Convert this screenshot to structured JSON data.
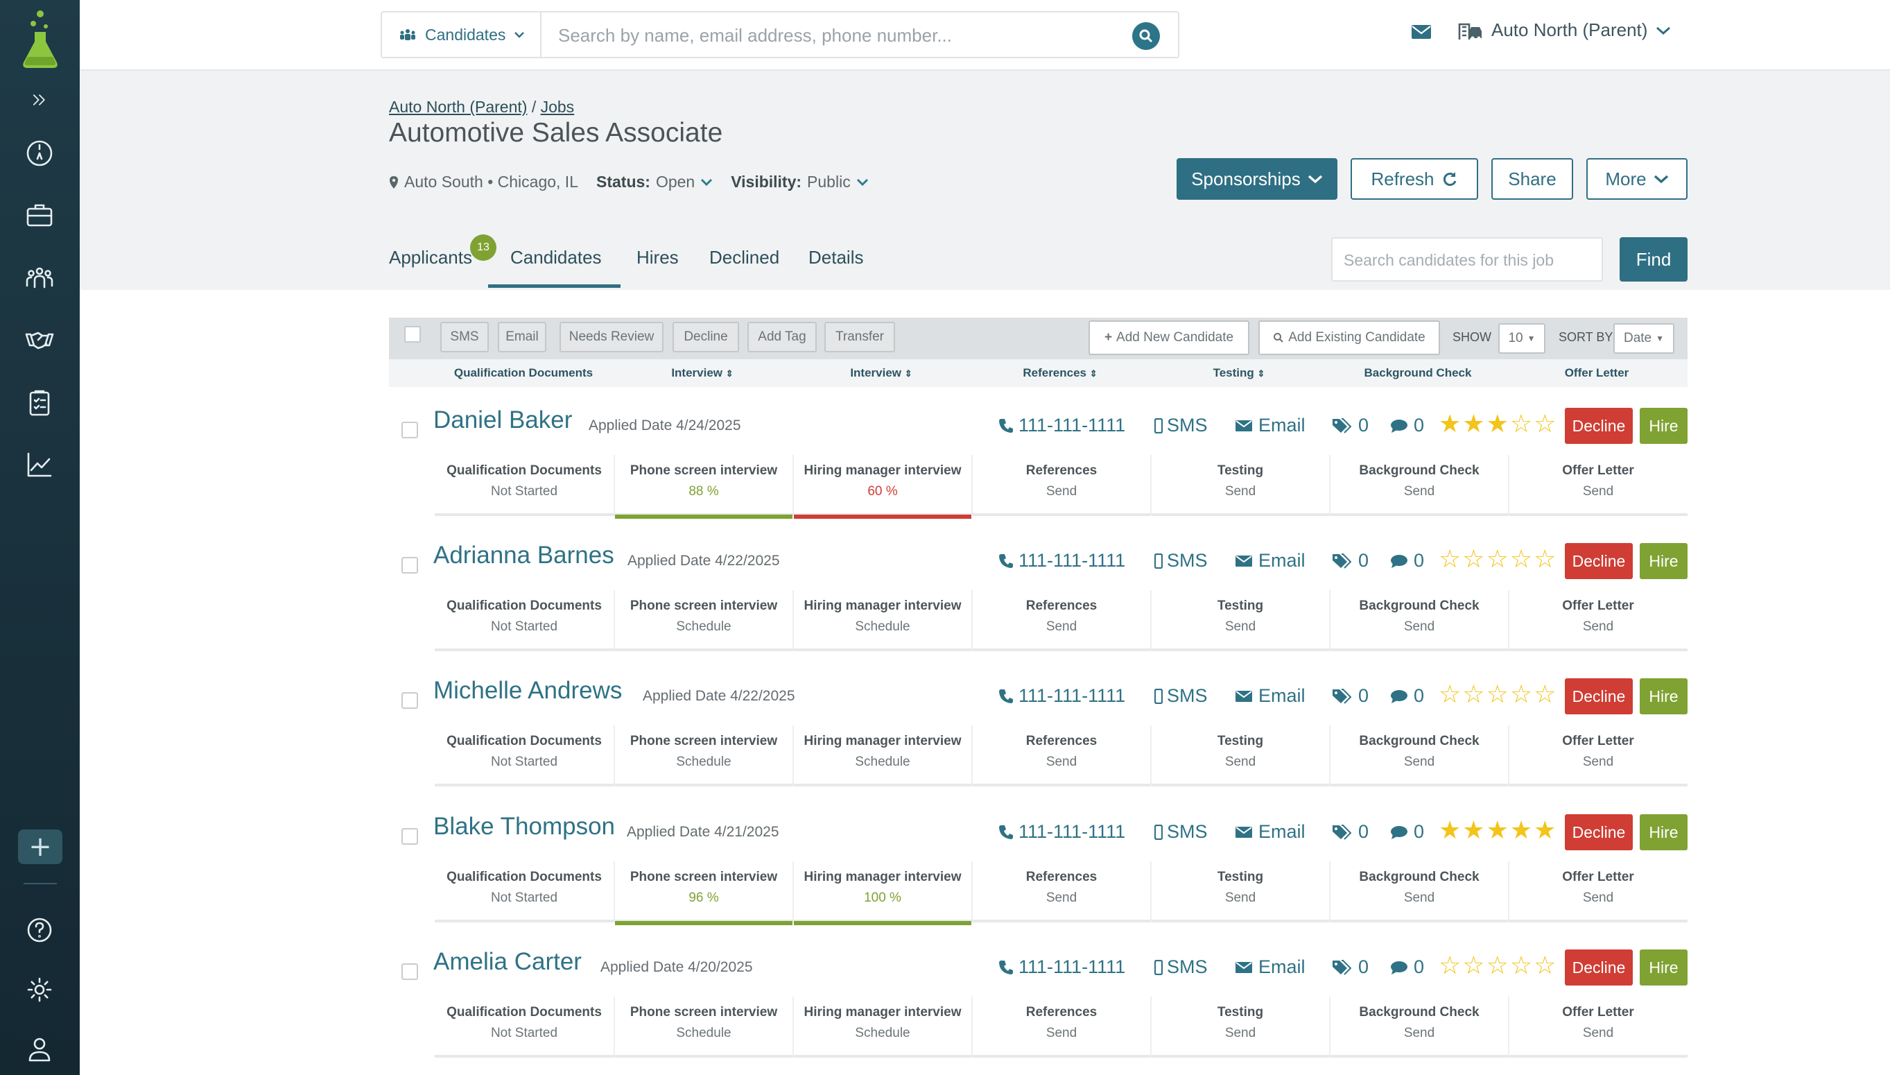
{
  "colors": {
    "accent": "#2f6f83",
    "decline": "#cf3d34",
    "hire": "#7fa232",
    "good": "#7fa232",
    "bad": "#cf3d34",
    "star": "#f3c419"
  },
  "topbar": {
    "scope_label": "Candidates",
    "search_placeholder": "Search by name, email address, phone number...",
    "account": "Auto North (Parent)"
  },
  "breadcrumb": {
    "parent": "Auto North (Parent)",
    "sep": "/",
    "jobs": "Jobs"
  },
  "job": {
    "title": "Automotive Sales Associate",
    "location": "Auto South • Chicago, IL",
    "status_label": "Status:",
    "status_value": "Open",
    "visibility_label": "Visibility:",
    "visibility_value": "Public"
  },
  "actions": {
    "sponsorships": "Sponsorships",
    "refresh": "Refresh",
    "share": "Share",
    "more": "More"
  },
  "tabs": [
    {
      "label": "Applicants",
      "badge": "13"
    },
    {
      "label": "Candidates"
    },
    {
      "label": "Hires"
    },
    {
      "label": "Declined"
    },
    {
      "label": "Details"
    }
  ],
  "candidate_search": {
    "placeholder": "Search candidates for this job",
    "button": "Find"
  },
  "toolbar": {
    "buttons": [
      "SMS",
      "Email",
      "Needs Review",
      "Decline",
      "Add Tag",
      "Transfer"
    ],
    "add_new": "Add New Candidate",
    "add_existing": "Add Existing Candidate",
    "show_label": "SHOW",
    "show_value": "10",
    "sort_label": "SORT BY",
    "sort_value": "Date"
  },
  "columns": [
    "Qualification Documents",
    "Interview",
    "Interview",
    "References",
    "Testing",
    "Background Check",
    "Offer Letter"
  ],
  "candidates": [
    {
      "name": "Daniel Baker",
      "applied": "Applied Date 4/24/2025",
      "phone": "111-111-1111",
      "sms": "SMS",
      "email": "Email",
      "tags": "0",
      "comments": "0",
      "rating": 3,
      "decline": "Decline",
      "hire": "Hire",
      "steps": [
        {
          "label": "Qualification Documents",
          "value": "Not Started"
        },
        {
          "label": "Phone screen interview",
          "value": "88 %",
          "score": 0.88
        },
        {
          "label": "Hiring manager interview",
          "value": "60 %",
          "score": 0.6
        },
        {
          "label": "References",
          "value": "Send"
        },
        {
          "label": "Testing",
          "value": "Send"
        },
        {
          "label": "Background Check",
          "value": "Send"
        },
        {
          "label": "Offer Letter",
          "value": "Send"
        }
      ]
    },
    {
      "name": "Adrianna Barnes",
      "applied": "Applied Date 4/22/2025",
      "phone": "111-111-1111",
      "sms": "SMS",
      "email": "Email",
      "tags": "0",
      "comments": "0",
      "rating": 0,
      "decline": "Decline",
      "hire": "Hire",
      "steps": [
        {
          "label": "Qualification Documents",
          "value": "Not Started"
        },
        {
          "label": "Phone screen interview",
          "value": "Schedule"
        },
        {
          "label": "Hiring manager interview",
          "value": "Schedule"
        },
        {
          "label": "References",
          "value": "Send"
        },
        {
          "label": "Testing",
          "value": "Send"
        },
        {
          "label": "Background Check",
          "value": "Send"
        },
        {
          "label": "Offer Letter",
          "value": "Send"
        }
      ]
    },
    {
      "name": "Michelle Andrews",
      "applied": "Applied Date 4/22/2025",
      "phone": "111-111-1111",
      "sms": "SMS",
      "email": "Email",
      "tags": "0",
      "comments": "0",
      "rating": 0,
      "decline": "Decline",
      "hire": "Hire",
      "steps": [
        {
          "label": "Qualification Documents",
          "value": "Not Started"
        },
        {
          "label": "Phone screen interview",
          "value": "Schedule"
        },
        {
          "label": "Hiring manager interview",
          "value": "Schedule"
        },
        {
          "label": "References",
          "value": "Send"
        },
        {
          "label": "Testing",
          "value": "Send"
        },
        {
          "label": "Background Check",
          "value": "Send"
        },
        {
          "label": "Offer Letter",
          "value": "Send"
        }
      ]
    },
    {
      "name": "Blake Thompson",
      "applied": "Applied Date 4/21/2025",
      "phone": "111-111-1111",
      "sms": "SMS",
      "email": "Email",
      "tags": "0",
      "comments": "0",
      "rating": 5,
      "decline": "Decline",
      "hire": "Hire",
      "steps": [
        {
          "label": "Qualification Documents",
          "value": "Not Started"
        },
        {
          "label": "Phone screen interview",
          "value": "96 %",
          "score": 0.96
        },
        {
          "label": "Hiring manager interview",
          "value": "100 %",
          "score": 1.0
        },
        {
          "label": "References",
          "value": "Send"
        },
        {
          "label": "Testing",
          "value": "Send"
        },
        {
          "label": "Background Check",
          "value": "Send"
        },
        {
          "label": "Offer Letter",
          "value": "Send"
        }
      ]
    },
    {
      "name": "Amelia Carter",
      "applied": "Applied Date 4/20/2025",
      "phone": "111-111-1111",
      "sms": "SMS",
      "email": "Email",
      "tags": "0",
      "comments": "0",
      "rating": 0,
      "decline": "Decline",
      "hire": "Hire",
      "steps": [
        {
          "label": "Qualification Documents",
          "value": "Not Started"
        },
        {
          "label": "Phone screen interview",
          "value": "Schedule"
        },
        {
          "label": "Hiring manager interview",
          "value": "Schedule"
        },
        {
          "label": "References",
          "value": "Send"
        },
        {
          "label": "Testing",
          "value": "Send"
        },
        {
          "label": "Background Check",
          "value": "Send"
        },
        {
          "label": "Offer Letter",
          "value": "Send"
        }
      ]
    }
  ]
}
